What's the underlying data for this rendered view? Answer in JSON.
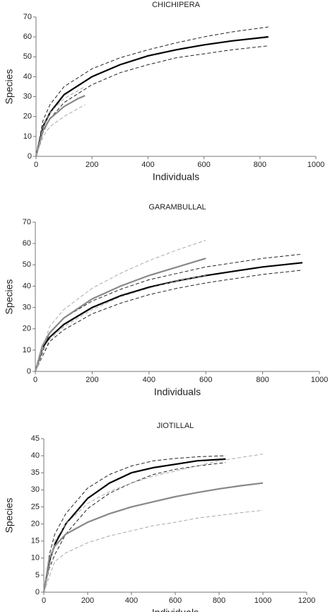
{
  "chart_data": [
    {
      "type": "line",
      "title": "CHICHIPERA",
      "x_label": "Individuals",
      "y_label": "Species",
      "xlim": [
        0,
        1000
      ],
      "xticks": [
        0,
        200,
        400,
        600,
        800,
        1000
      ],
      "ylim": [
        0,
        70
      ],
      "yticks": [
        0,
        10,
        20,
        30,
        40,
        50,
        60,
        70
      ],
      "grid": false,
      "series": [
        {
          "color": "#000000",
          "dashed": false,
          "x": [
            0,
            25,
            50,
            100,
            200,
            300,
            400,
            500,
            600,
            700,
            830
          ],
          "values": [
            0,
            15,
            22,
            31,
            40,
            46,
            50.5,
            53.5,
            56,
            58,
            60
          ]
        },
        {
          "color": "#222222",
          "dashed": true,
          "x": [
            0,
            25,
            50,
            100,
            200,
            300,
            400,
            500,
            600,
            700,
            830
          ],
          "values": [
            0,
            18,
            26,
            35,
            44,
            49.5,
            53.5,
            57,
            60,
            62.5,
            65
          ]
        },
        {
          "color": "#222222",
          "dashed": true,
          "x": [
            0,
            25,
            50,
            100,
            200,
            300,
            400,
            500,
            600,
            700,
            830
          ],
          "values": [
            0,
            12,
            19,
            27,
            36,
            42,
            46,
            49.5,
            51.5,
            53.5,
            55.5
          ]
        },
        {
          "color": "#888888",
          "dashed": false,
          "x": [
            0,
            25,
            50,
            100,
            150,
            175
          ],
          "values": [
            0,
            13,
            19,
            25,
            29,
            30.5
          ]
        },
        {
          "color": "#aaaaaa",
          "dashed": true,
          "x": [
            0,
            25,
            50,
            100,
            150,
            175
          ],
          "values": [
            0,
            15,
            22,
            29,
            33,
            35
          ]
        },
        {
          "color": "#aaaaaa",
          "dashed": true,
          "x": [
            0,
            25,
            50,
            100,
            150,
            175
          ],
          "values": [
            0,
            10,
            15,
            20,
            24,
            26
          ]
        }
      ]
    },
    {
      "type": "line",
      "title": "GARAMBULLAL",
      "x_label": "Individuals",
      "y_label": "Species",
      "xlim": [
        0,
        1000
      ],
      "xticks": [
        0,
        200,
        400,
        600,
        800,
        1000
      ],
      "ylim": [
        0,
        70
      ],
      "yticks": [
        0,
        10,
        20,
        30,
        40,
        50,
        60,
        70
      ],
      "grid": false,
      "series": [
        {
          "color": "#000000",
          "dashed": false,
          "x": [
            0,
            25,
            50,
            100,
            200,
            300,
            400,
            500,
            600,
            700,
            800,
            940
          ],
          "values": [
            0,
            11,
            16,
            22,
            30,
            35.5,
            39.5,
            42.5,
            45,
            47,
            49,
            51
          ]
        },
        {
          "color": "#222222",
          "dashed": true,
          "x": [
            0,
            50,
            100,
            200,
            300,
            400,
            500,
            600,
            700,
            800,
            940
          ],
          "values": [
            0,
            18,
            25,
            33,
            38.5,
            43,
            46,
            49,
            51,
            53,
            55
          ]
        },
        {
          "color": "#222222",
          "dashed": true,
          "x": [
            0,
            50,
            100,
            200,
            300,
            400,
            500,
            600,
            700,
            800,
            940
          ],
          "values": [
            0,
            14,
            19.5,
            27,
            32,
            36,
            39,
            41.5,
            43.5,
            45.5,
            47.5
          ]
        },
        {
          "color": "#888888",
          "dashed": false,
          "x": [
            0,
            25,
            50,
            100,
            200,
            300,
            400,
            500,
            600
          ],
          "values": [
            0,
            12,
            18,
            25,
            34,
            40,
            45,
            49,
            53
          ]
        },
        {
          "color": "#aaaaaa",
          "dashed": true,
          "x": [
            0,
            50,
            100,
            200,
            300,
            400,
            500,
            600
          ],
          "values": [
            0,
            21,
            29,
            39,
            46,
            52,
            57,
            61.5
          ]
        },
        {
          "color": "#aaaaaa",
          "dashed": true,
          "x": [
            0,
            50,
            100,
            200,
            300,
            400,
            500,
            600
          ],
          "values": [
            0,
            15,
            21,
            29,
            35,
            39,
            42.5,
            45
          ]
        }
      ]
    },
    {
      "type": "line",
      "title": "JIOTILLAL",
      "x_label": "Individuals",
      "y_label": "Species",
      "xlim": [
        0,
        1200
      ],
      "xticks": [
        0,
        200,
        400,
        600,
        800,
        1000,
        1200
      ],
      "ylim": [
        0,
        45
      ],
      "yticks": [
        0,
        5,
        10,
        15,
        20,
        25,
        30,
        35,
        40,
        45
      ],
      "grid": false,
      "series": [
        {
          "color": "#000000",
          "dashed": false,
          "x": [
            0,
            25,
            50,
            100,
            200,
            300,
            400,
            500,
            600,
            700,
            830
          ],
          "values": [
            0,
            9,
            14,
            20,
            27.5,
            32,
            35,
            36.5,
            37.5,
            38.5,
            39
          ]
        },
        {
          "color": "#222222",
          "dashed": true,
          "x": [
            0,
            25,
            50,
            100,
            200,
            300,
            400,
            500,
            600,
            700,
            830
          ],
          "values": [
            0,
            11,
            17,
            23,
            30.5,
            34.5,
            37,
            38.5,
            39.2,
            39.7,
            40
          ]
        },
        {
          "color": "#222222",
          "dashed": true,
          "x": [
            0,
            25,
            50,
            100,
            200,
            300,
            400,
            500,
            600,
            700,
            830
          ],
          "values": [
            0,
            7,
            11,
            17,
            24.5,
            29,
            32,
            34.5,
            36,
            37,
            38
          ]
        },
        {
          "color": "#888888",
          "dashed": false,
          "x": [
            0,
            25,
            50,
            100,
            200,
            300,
            400,
            500,
            600,
            700,
            800,
            900,
            1000
          ],
          "values": [
            0,
            10,
            13.5,
            17,
            20.5,
            23,
            25,
            26.5,
            28,
            29.2,
            30.3,
            31.2,
            32
          ]
        },
        {
          "color": "#aaaaaa",
          "dashed": true,
          "x": [
            0,
            50,
            100,
            200,
            300,
            400,
            500,
            600,
            700,
            800,
            900,
            1000
          ],
          "values": [
            0,
            15,
            20,
            26,
            29.5,
            32,
            34,
            35.5,
            37,
            38.5,
            39.5,
            40.5
          ]
        },
        {
          "color": "#aaaaaa",
          "dashed": true,
          "x": [
            0,
            50,
            100,
            200,
            300,
            400,
            500,
            600,
            700,
            800,
            900,
            1000
          ],
          "values": [
            0,
            9,
            11.5,
            14.5,
            16.5,
            18,
            19.5,
            20.5,
            21.7,
            22.5,
            23.3,
            24
          ]
        }
      ]
    }
  ]
}
